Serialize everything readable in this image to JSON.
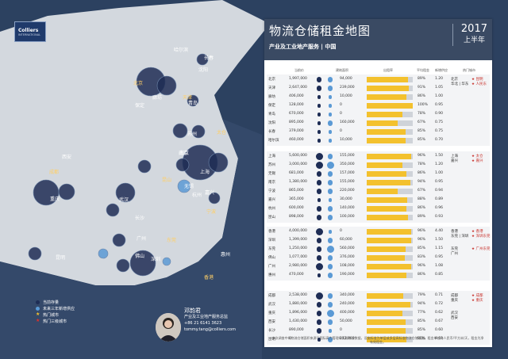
{
  "brand": {
    "logo_line1": "Colliers",
    "logo_line2": "INTERNATIONAL"
  },
  "title": "物流仓储租金地图",
  "subtitle": "产业及工业地产服务 | 中国",
  "year": "2017",
  "half": "上半年",
  "headers": {
    "col1": "当前价",
    "col2": "建筑面积",
    "col3": "出租率",
    "col4": "平均租金",
    "col5": "新增供应",
    "col6": "热门城市"
  },
  "groups": [
    {
      "rows": [
        {
          "city": "北京",
          "v1": "1,997,000",
          "v2": "94,000",
          "pct": "89%",
          "rent": "1.20",
          "fill": 0.89,
          "d1": 1,
          "d2": 1,
          "extra": "北京\n华北 | 华东",
          "star": "★ 昆明\n★ 人民东"
        },
        {
          "city": "天津",
          "v1": "2,647,000",
          "v2": "239,000",
          "pct": "91%",
          "rent": "1.05",
          "fill": 0.91,
          "d1": 1,
          "d2": 1,
          "extra": "",
          "star": ""
        },
        {
          "city": "廊坊",
          "v1": "406,000",
          "v2": "10,000",
          "pct": "86%",
          "rent": "1.00",
          "fill": 0.86,
          "d1": 0,
          "d2": 0,
          "extra": "",
          "star": ""
        },
        {
          "city": "保定",
          "v1": "128,000",
          "v2": "0",
          "pct": "100%",
          "rent": "0.95",
          "fill": 1.0,
          "d1": 0,
          "d2": 0,
          "extra": "",
          "star": ""
        },
        {
          "city": "青岛",
          "v1": "670,000",
          "v2": "0",
          "pct": "78%",
          "rent": "0.90",
          "fill": 0.78,
          "d1": 0,
          "d2": 0,
          "extra": "",
          "star": ""
        },
        {
          "city": "沈阳",
          "v1": "895,000",
          "v2": "160,000",
          "pct": "67%",
          "rent": "0.75",
          "fill": 0.67,
          "d1": 0,
          "d2": 1,
          "extra": "",
          "star": ""
        },
        {
          "city": "长春",
          "v1": "379,000",
          "v2": "0",
          "pct": "85%",
          "rent": "0.75",
          "fill": 0.85,
          "d1": 0,
          "d2": 0,
          "extra": "",
          "star": ""
        },
        {
          "city": "哈尔滨",
          "v1": "460,000",
          "v2": "10,000",
          "pct": "85%",
          "rent": "0.70",
          "fill": 0.85,
          "d1": 0,
          "d2": 0,
          "extra": "",
          "star": ""
        }
      ]
    },
    {
      "rows": [
        {
          "city": "上海",
          "v1": "5,600,000",
          "v2": "155,000",
          "pct": "96%",
          "rent": "1.50",
          "fill": 0.96,
          "d1": 2,
          "d2": 1,
          "extra": "上海\n嘉兴",
          "star": "★ 太仓\n★ 嘉兴"
        },
        {
          "city": "苏州",
          "v1": "3,000,000",
          "v2": "350,000",
          "pct": "78%",
          "rent": "1.20",
          "fill": 0.78,
          "d1": 2,
          "d2": 2,
          "extra": "",
          "star": ""
        },
        {
          "city": "无锡",
          "v1": "681,000",
          "v2": "157,000",
          "pct": "86%",
          "rent": "1.00",
          "fill": 0.86,
          "d1": 1,
          "d2": 1,
          "extra": "",
          "star": ""
        },
        {
          "city": "南京",
          "v1": "1,380,000",
          "v2": "155,000",
          "pct": "94%",
          "rent": "0.95",
          "fill": 0.94,
          "d1": 1,
          "d2": 1,
          "extra": "",
          "star": ""
        },
        {
          "city": "宁波",
          "v1": "865,000",
          "v2": "220,000",
          "pct": "67%",
          "rent": "0.94",
          "fill": 0.67,
          "d1": 1,
          "d2": 1,
          "extra": "",
          "star": ""
        },
        {
          "city": "嘉兴",
          "v1": "365,000",
          "v2": "30,000",
          "pct": "88%",
          "rent": "0.89",
          "fill": 0.88,
          "d1": 0,
          "d2": 0,
          "extra": "",
          "star": ""
        },
        {
          "city": "杭州",
          "v1": "600,000",
          "v2": "140,000",
          "pct": "86%",
          "rent": "0.96",
          "fill": 0.86,
          "d1": 1,
          "d2": 1,
          "extra": "",
          "star": ""
        },
        {
          "city": "昆山",
          "v1": "898,000",
          "v2": "100,000",
          "pct": "89%",
          "rent": "0.93",
          "fill": 0.89,
          "d1": 1,
          "d2": 1,
          "extra": "",
          "star": ""
        }
      ]
    },
    {
      "rows": [
        {
          "city": "香港",
          "v1": "4,000,000",
          "v2": "0",
          "pct": "96%",
          "rent": "4.40",
          "fill": 0.96,
          "d1": 2,
          "d2": 0,
          "extra": "香港\n东莞 | 深圳",
          "star": "★ 香港\n★ 深圳东莞"
        },
        {
          "city": "深圳",
          "v1": "1,399,000",
          "v2": "60,000",
          "pct": "96%",
          "rent": "1.50",
          "fill": 0.96,
          "d1": 1,
          "d2": 1,
          "extra": "",
          "star": ""
        },
        {
          "city": "东莞",
          "v1": "1,250,000",
          "v2": "560,000",
          "pct": "85%",
          "rent": "1.15",
          "fill": 0.85,
          "d1": 1,
          "d2": 2,
          "extra": "东莞\n广州",
          "star": "★ 广州东莞"
        },
        {
          "city": "佛山",
          "v1": "1,077,000",
          "v2": "376,000",
          "pct": "83%",
          "rent": "0.95",
          "fill": 0.83,
          "d1": 1,
          "d2": 1,
          "extra": "",
          "star": ""
        },
        {
          "city": "广州",
          "v1": "2,980,000",
          "v2": "108,000",
          "pct": "96%",
          "rent": "1.08",
          "fill": 0.96,
          "d1": 2,
          "d2": 1,
          "extra": "",
          "star": ""
        },
        {
          "city": "惠州",
          "v1": "470,000",
          "v2": "190,000",
          "pct": "86%",
          "rent": "0.85",
          "fill": 0.86,
          "d1": 0,
          "d2": 1,
          "extra": "",
          "star": ""
        }
      ]
    },
    {
      "rows": [
        {
          "city": "成都",
          "v1": "2,538,000",
          "v2": "340,000",
          "pct": "79%",
          "rent": "0.71",
          "fill": 0.79,
          "d1": 2,
          "d2": 1,
          "extra": "成都\n重庆",
          "star": "★ 成都\n★ 重庆"
        },
        {
          "city": "武汉",
          "v1": "1,880,000",
          "v2": "240,000",
          "pct": "94%",
          "rent": "0.72",
          "fill": 0.94,
          "d1": 1,
          "d2": 1,
          "extra": "",
          "star": ""
        },
        {
          "city": "重庆",
          "v1": "1,896,000",
          "v2": "400,000",
          "pct": "77%",
          "rent": "0.62",
          "fill": 0.77,
          "d1": 1,
          "d2": 2,
          "extra": "武汉\n西安",
          "star": ""
        },
        {
          "city": "西安",
          "v1": "1,430,000",
          "v2": "50,000",
          "pct": "85%",
          "rent": "0.67",
          "fill": 0.85,
          "d1": 1,
          "d2": 1,
          "extra": "",
          "star": ""
        },
        {
          "city": "长沙",
          "v1": "890,000",
          "v2": "0",
          "pct": "85%",
          "rent": "0.60",
          "fill": 0.85,
          "d1": 1,
          "d2": 0,
          "extra": "",
          "star": ""
        },
        {
          "city": "昆明",
          "v1": "0",
          "v2": "212,000",
          "pct": "86%",
          "rent": "0.60",
          "fill": 0.86,
          "d1": 0,
          "d2": 1,
          "extra": "",
          "star": ""
        }
      ]
    }
  ],
  "note": "本次调查中的物流仓储面积来源于国际高力管理的优质物业数据，设施标准为单层或多层高标准物流仓储设施。租金单位为人民币/平方米/天，租金为净有效租金。",
  "legend": [
    {
      "label": "当前存量",
      "color": "#1e2d55",
      "kind": "dot"
    },
    {
      "label": "未来三年新增供应",
      "color": "#5b9ad5",
      "kind": "dot"
    },
    {
      "label": "热门城市",
      "color": "#f3c12e",
      "kind": "star"
    },
    {
      "label": "热门三级城市",
      "color": "#e0302a",
      "kind": "star"
    }
  ],
  "contact": {
    "name": "邓韵君",
    "role": "产业及工业地产服务总监",
    "phone": "+86 21 6141 3623",
    "email": "tommy.tang@colliers.com"
  },
  "cities": [
    {
      "name": "哈尔滨",
      "red": false
    },
    {
      "name": "长春",
      "red": false
    },
    {
      "name": "沈阳",
      "red": false
    },
    {
      "name": "北京",
      "red": true
    },
    {
      "name": "天津",
      "red": true
    },
    {
      "name": "廊坊",
      "red": false
    },
    {
      "name": "保定",
      "red": false
    },
    {
      "name": "青岛",
      "red": false
    },
    {
      "name": "西安",
      "red": false
    },
    {
      "name": "南京",
      "red": false
    },
    {
      "name": "苏州",
      "red": false
    },
    {
      "name": "太仓",
      "red": true
    },
    {
      "name": "昆山",
      "red": true
    },
    {
      "name": "上海",
      "red": false
    },
    {
      "name": "嘉兴",
      "red": false
    },
    {
      "name": "杭州",
      "red": false
    },
    {
      "name": "宁波",
      "red": true
    },
    {
      "name": "成都",
      "red": true
    },
    {
      "name": "重庆",
      "red": false
    },
    {
      "name": "武汉",
      "red": false
    },
    {
      "name": "长沙",
      "red": false
    },
    {
      "name": "昆明",
      "red": false
    },
    {
      "name": "广州",
      "red": false
    },
    {
      "name": "东莞",
      "red": true
    },
    {
      "name": "惠州",
      "red": false
    },
    {
      "name": "佛山",
      "red": false
    },
    {
      "name": "深圳",
      "red": false
    },
    {
      "name": "香港",
      "red": true
    },
    {
      "name": "南京",
      "red": false
    },
    {
      "name": "无锡",
      "red": false
    }
  ]
}
